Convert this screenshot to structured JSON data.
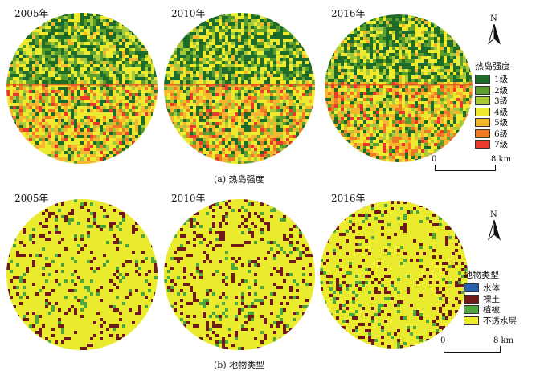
{
  "panel_a": {
    "years": [
      "2005年",
      "2010年",
      "2016年"
    ],
    "caption": "(a) 热岛强度",
    "legend": {
      "title": "热岛强度",
      "items": [
        {
          "label": "1级",
          "color": "#1e6b2a"
        },
        {
          "label": "2级",
          "color": "#5c9e2e"
        },
        {
          "label": "3级",
          "color": "#a7c93a"
        },
        {
          "label": "4级",
          "color": "#eeea2f"
        },
        {
          "label": "5级",
          "color": "#f5b72e"
        },
        {
          "label": "6级",
          "color": "#ee7a26"
        },
        {
          "label": "7级",
          "color": "#e8392a"
        }
      ]
    },
    "scale": {
      "start": "0",
      "end": "8 km"
    },
    "north": "N"
  },
  "panel_b": {
    "years": [
      "2005年",
      "2010年",
      "2016年"
    ],
    "caption": "(b) 地物类型",
    "legend": {
      "title": "地物类型",
      "items": [
        {
          "label": "水体",
          "color": "#2b5fb0"
        },
        {
          "label": "裸土",
          "color": "#6e1a16"
        },
        {
          "label": "植被",
          "color": "#4fa63a"
        },
        {
          "label": "不透水层",
          "color": "#eaea2e"
        }
      ]
    },
    "scale": {
      "start": "0",
      "end": "8 km"
    },
    "north": "N"
  }
}
